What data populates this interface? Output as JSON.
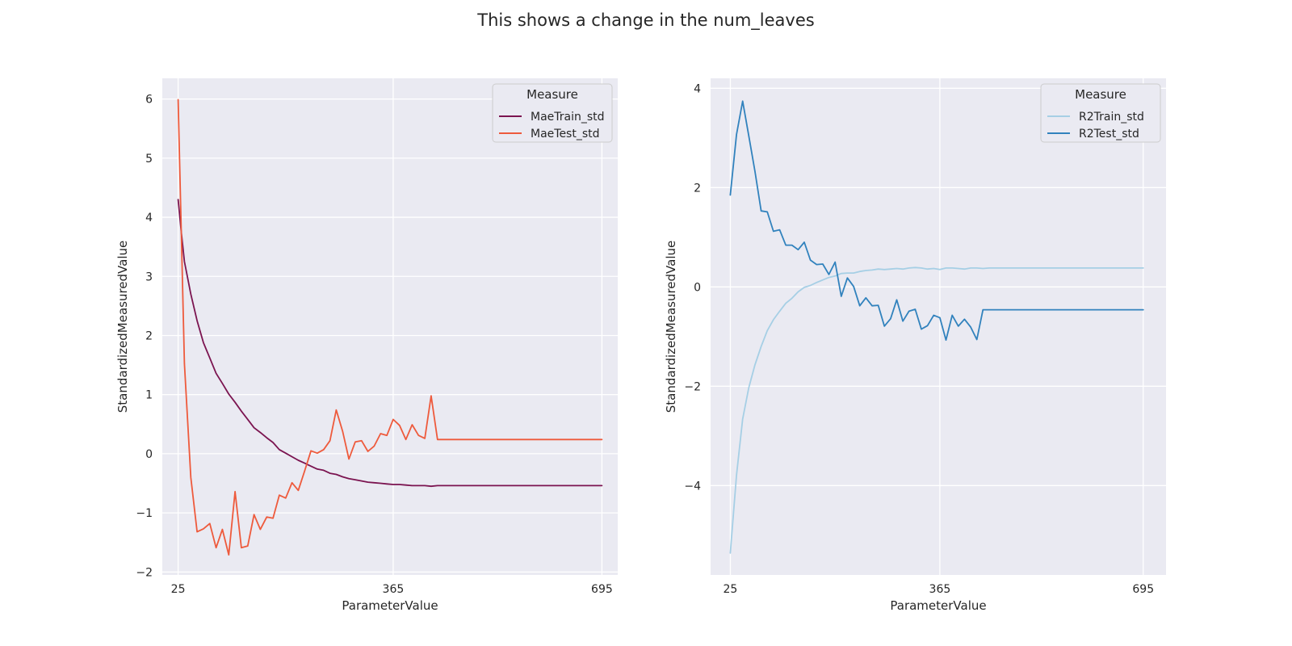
{
  "figure": {
    "title": "This shows a change in the num_leaves"
  },
  "chart_data": [
    {
      "type": "line",
      "title": "",
      "xlabel": "ParameterValue",
      "ylabel": "StandardizedMeasuredValue",
      "xlim": [
        0,
        720
      ],
      "ylim": [
        -2.05,
        6.35
      ],
      "xticks": [
        25,
        365,
        695
      ],
      "yticks": [
        -2,
        -1,
        0,
        1,
        2,
        3,
        4,
        5,
        6
      ],
      "grid": true,
      "legend": {
        "title": "Measure",
        "placement": "top-right"
      },
      "series": [
        {
          "name": "MaeTrain_std",
          "color": "#7b1450",
          "x": [
            25,
            30,
            35,
            45,
            55,
            65,
            75,
            85,
            95,
            105,
            115,
            125,
            135,
            145,
            155,
            165,
            175,
            185,
            195,
            205,
            215,
            225,
            235,
            245,
            255,
            265,
            275,
            285,
            295,
            305,
            315,
            325,
            335,
            345,
            355,
            365,
            375,
            385,
            395,
            405,
            415,
            425,
            435,
            445,
            455,
            695
          ],
          "y": [
            4.3,
            3.75,
            3.25,
            2.7,
            2.25,
            1.88,
            1.62,
            1.36,
            1.19,
            1.01,
            0.87,
            0.72,
            0.58,
            0.44,
            0.36,
            0.27,
            0.19,
            0.07,
            0.01,
            -0.05,
            -0.11,
            -0.16,
            -0.21,
            -0.26,
            -0.28,
            -0.33,
            -0.35,
            -0.39,
            -0.42,
            -0.44,
            -0.46,
            -0.48,
            -0.49,
            -0.5,
            -0.51,
            -0.52,
            -0.52,
            -0.53,
            -0.54,
            -0.54,
            -0.54,
            -0.55,
            -0.54,
            -0.54,
            -0.54,
            -0.54
          ]
        },
        {
          "name": "MaeTest_std",
          "color": "#ee5a3c",
          "x": [
            25,
            35,
            45,
            55,
            65,
            75,
            85,
            95,
            105,
            115,
            125,
            135,
            145,
            155,
            165,
            175,
            185,
            195,
            205,
            215,
            225,
            235,
            245,
            255,
            265,
            275,
            285,
            295,
            305,
            315,
            325,
            335,
            345,
            355,
            365,
            375,
            385,
            395,
            405,
            415,
            425,
            435,
            445,
            695
          ],
          "y": [
            5.99,
            1.52,
            -0.4,
            -1.32,
            -1.27,
            -1.18,
            -1.59,
            -1.28,
            -1.71,
            -0.64,
            -1.59,
            -1.56,
            -1.03,
            -1.28,
            -1.07,
            -1.09,
            -0.7,
            -0.75,
            -0.49,
            -0.62,
            -0.29,
            0.05,
            0.01,
            0.07,
            0.22,
            0.74,
            0.38,
            -0.09,
            0.2,
            0.22,
            0.04,
            0.13,
            0.34,
            0.31,
            0.58,
            0.48,
            0.24,
            0.49,
            0.31,
            0.26,
            0.98,
            0.24,
            0.24,
            0.24
          ]
        }
      ]
    },
    {
      "type": "line",
      "title": "",
      "xlabel": "ParameterValue",
      "ylabel": "StandardizedMeasuredValue",
      "xlim": [
        -7,
        732
      ],
      "ylim": [
        -5.8,
        4.2
      ],
      "xticks": [
        25,
        365,
        695
      ],
      "yticks": [
        -4,
        -2,
        0,
        2,
        4
      ],
      "grid": true,
      "legend": {
        "title": "Measure",
        "placement": "top-right"
      },
      "series": [
        {
          "name": "R2Train_std",
          "color": "#a6cfe5",
          "x": [
            25,
            35,
            45,
            55,
            65,
            75,
            85,
            95,
            105,
            115,
            125,
            135,
            145,
            155,
            165,
            175,
            185,
            195,
            205,
            215,
            225,
            235,
            245,
            255,
            265,
            275,
            285,
            295,
            305,
            315,
            325,
            335,
            345,
            355,
            365,
            375,
            385,
            395,
            405,
            415,
            425,
            435,
            445,
            695
          ],
          "y": [
            -5.36,
            -3.79,
            -2.66,
            -2.03,
            -1.57,
            -1.2,
            -0.88,
            -0.66,
            -0.49,
            -0.33,
            -0.23,
            -0.1,
            -0.01,
            0.03,
            0.09,
            0.14,
            0.19,
            0.22,
            0.27,
            0.28,
            0.28,
            0.31,
            0.33,
            0.34,
            0.36,
            0.35,
            0.36,
            0.37,
            0.36,
            0.38,
            0.39,
            0.38,
            0.36,
            0.37,
            0.35,
            0.38,
            0.38,
            0.37,
            0.36,
            0.38,
            0.38,
            0.37,
            0.38,
            0.38
          ]
        },
        {
          "name": "R2Test_std",
          "color": "#3182bd",
          "x": [
            25,
            35,
            45,
            55,
            65,
            75,
            85,
            95,
            105,
            115,
            125,
            135,
            145,
            155,
            165,
            175,
            185,
            195,
            205,
            215,
            225,
            235,
            245,
            255,
            265,
            275,
            285,
            295,
            305,
            315,
            325,
            335,
            345,
            355,
            365,
            375,
            385,
            395,
            405,
            415,
            425,
            435,
            695
          ],
          "y": [
            1.85,
            3.07,
            3.74,
            3.04,
            2.33,
            1.53,
            1.51,
            1.12,
            1.15,
            0.84,
            0.84,
            0.75,
            0.9,
            0.54,
            0.45,
            0.46,
            0.25,
            0.5,
            -0.19,
            0.18,
            0.01,
            -0.38,
            -0.22,
            -0.38,
            -0.37,
            -0.79,
            -0.64,
            -0.26,
            -0.69,
            -0.49,
            -0.45,
            -0.85,
            -0.78,
            -0.57,
            -0.62,
            -1.07,
            -0.57,
            -0.79,
            -0.65,
            -0.81,
            -1.06,
            -0.46,
            -0.46
          ]
        }
      ]
    }
  ]
}
